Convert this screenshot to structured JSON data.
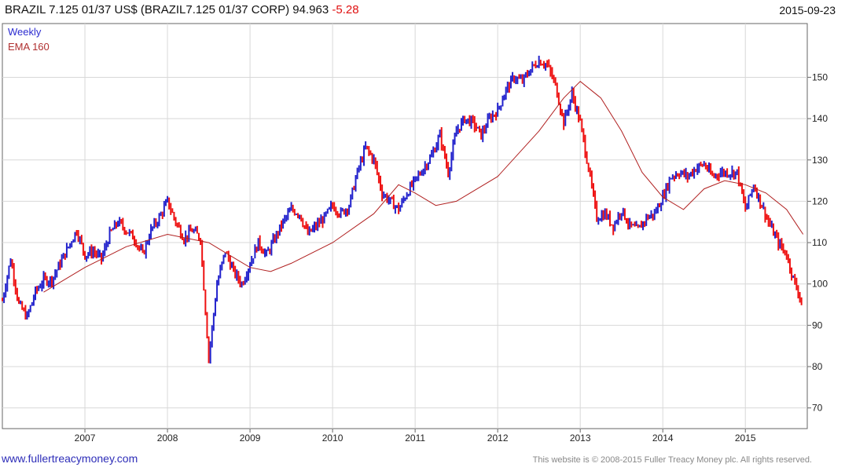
{
  "header": {
    "title": "BRAZIL 7.125 01/37 US$ (BRAZIL7.125 01/37 CORP) 94.963",
    "change": "-5.28",
    "date": "2015-09-23"
  },
  "legend": {
    "series1": "Weekly",
    "series2": "EMA 160"
  },
  "footer": {
    "website": "www.fullertreacymoney.com",
    "copyright": "This website is © 2008-2015 Fuller Treacy Money plc. All rights reserved."
  },
  "colors": {
    "up": "#2222cc",
    "down": "#ee1111",
    "ema": "#b02020",
    "grid": "#d8d8d8",
    "axis": "#666666"
  },
  "chart_data": {
    "type": "line",
    "title": "BRAZIL 7.125 01/37 US$ (BRAZIL7.125 01/37 CORP) 94.963 -5.28",
    "xlabel": "",
    "ylabel": "",
    "x_ticks": [
      "2007",
      "2008",
      "2009",
      "2010",
      "2011",
      "2012",
      "2013",
      "2014",
      "2015"
    ],
    "y_ticks": [
      70,
      80,
      90,
      100,
      110,
      120,
      130,
      140,
      150
    ],
    "xlim": [
      2006.0,
      2015.75
    ],
    "ylim": [
      65,
      163
    ],
    "grid": true,
    "legend_position": "top-left",
    "series": [
      {
        "name": "Weekly",
        "x": [
          2006.0,
          2006.1,
          2006.2,
          2006.3,
          2006.4,
          2006.5,
          2006.6,
          2006.7,
          2006.8,
          2006.9,
          2007.0,
          2007.1,
          2007.2,
          2007.3,
          2007.4,
          2007.5,
          2007.6,
          2007.7,
          2007.8,
          2007.9,
          2008.0,
          2008.1,
          2008.2,
          2008.3,
          2008.4,
          2008.5,
          2008.6,
          2008.7,
          2008.8,
          2008.9,
          2009.0,
          2009.1,
          2009.2,
          2009.3,
          2009.4,
          2009.5,
          2009.6,
          2009.7,
          2009.8,
          2009.9,
          2010.0,
          2010.1,
          2010.2,
          2010.3,
          2010.4,
          2010.5,
          2010.6,
          2010.7,
          2010.8,
          2010.9,
          2011.0,
          2011.1,
          2011.2,
          2011.3,
          2011.4,
          2011.5,
          2011.6,
          2011.7,
          2011.8,
          2011.9,
          2012.0,
          2012.1,
          2012.2,
          2012.3,
          2012.4,
          2012.5,
          2012.6,
          2012.7,
          2012.8,
          2012.9,
          2013.0,
          2013.1,
          2013.2,
          2013.3,
          2013.4,
          2013.5,
          2013.6,
          2013.7,
          2013.8,
          2013.9,
          2014.0,
          2014.1,
          2014.2,
          2014.3,
          2014.4,
          2014.5,
          2014.6,
          2014.7,
          2014.8,
          2014.9,
          2015.0,
          2015.1,
          2015.2,
          2015.3,
          2015.4,
          2015.5,
          2015.6,
          2015.7
        ],
        "values": [
          96,
          106,
          95,
          92,
          98,
          101,
          101,
          105,
          109,
          113,
          107,
          108,
          106,
          112,
          115,
          113,
          111,
          107,
          113,
          116,
          120,
          115,
          111,
          113,
          111,
          82,
          100,
          108,
          103,
          100,
          105,
          110,
          107,
          111,
          115,
          118,
          117,
          112,
          114,
          116,
          119,
          117,
          119,
          127,
          133,
          130,
          122,
          120,
          118,
          122,
          125,
          128,
          131,
          136,
          127,
          137,
          140,
          139,
          136,
          140,
          142,
          147,
          150,
          149,
          152,
          154,
          153,
          148,
          139,
          146,
          139,
          128,
          116,
          117,
          114,
          118,
          114,
          113,
          116,
          117,
          121,
          126,
          127,
          126,
          128,
          129,
          126,
          127,
          127,
          127,
          118,
          124,
          119,
          114,
          110,
          107,
          100,
          95
        ],
        "color": "#2222cc"
      },
      {
        "name": "EMA 160",
        "x": [
          2006.5,
          2007.0,
          2007.5,
          2008.0,
          2008.5,
          2008.75,
          2009.0,
          2009.25,
          2009.5,
          2010.0,
          2010.5,
          2010.8,
          2011.0,
          2011.25,
          2011.5,
          2012.0,
          2012.5,
          2012.8,
          2013.0,
          2013.25,
          2013.5,
          2013.75,
          2014.0,
          2014.25,
          2014.5,
          2014.75,
          2015.0,
          2015.25,
          2015.5,
          2015.7
        ],
        "values": [
          98,
          104,
          109,
          112,
          110,
          107,
          104,
          103,
          105,
          110,
          117,
          124,
          122,
          119,
          120,
          126,
          137,
          145,
          149,
          145,
          137,
          127,
          121,
          118,
          123,
          125,
          124,
          122,
          118,
          112
        ],
        "color": "#b02020"
      }
    ]
  }
}
